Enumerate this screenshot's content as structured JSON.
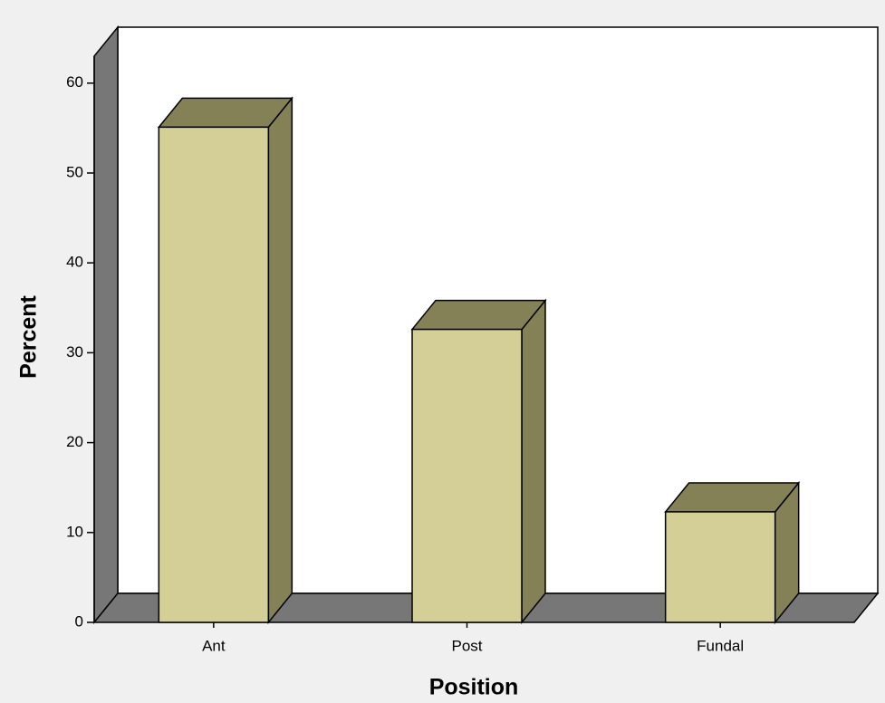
{
  "chart_data": {
    "type": "bar",
    "x_label": "Position",
    "y_label": "Percent",
    "categories": [
      "Ant",
      "Post",
      "Fundal"
    ],
    "values": [
      55.1,
      32.6,
      12.3
    ],
    "color": "#d3cf96",
    "shade_color": "#858157",
    "ylim": [
      0,
      63
    ],
    "yticks": [
      0,
      10,
      20,
      30,
      40,
      50,
      60
    ],
    "grid": false
  }
}
